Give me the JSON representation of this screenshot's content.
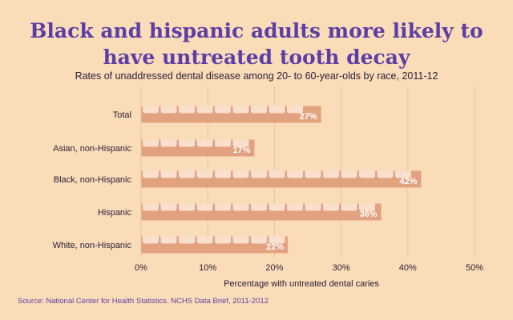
{
  "header": {
    "title_line1": "Black and hispanic adults more likely to",
    "title_line2": "have untreated tooth decay",
    "subtitle": "Rates of unaddressed dental disease among 20- to 60-year-olds by race, 2011-12"
  },
  "footer": {
    "source": "Source: National Center for Health Statistics. NCHS Data Brief, 2011-2012"
  },
  "colors": {
    "background": "#fbdcb8",
    "bar": "#e3a27f",
    "tooth": "#fdeadb",
    "bar_label": "#ffffff",
    "gridline": "#e6c39f",
    "axis_text": "#2a2038",
    "title": "#5b3fa6"
  },
  "chart_data": {
    "type": "bar",
    "orientation": "horizontal",
    "title": "Black and hispanic adults more likely to have untreated tooth decay",
    "subtitle": "Rates of unaddressed dental disease among 20- to 60-year-olds by race, 2011-12",
    "categories": [
      "Total",
      "Asian, non-Hispanic",
      "Black, non-Hispanic",
      "Hispanic",
      "White, non-Hispanic"
    ],
    "values": [
      27,
      17,
      42,
      36,
      22
    ],
    "value_labels": [
      "27%",
      "17%",
      "42%",
      "36%",
      "22%"
    ],
    "xlabel": "Percentage with untreated dental caries",
    "ylabel": "",
    "xlim": [
      0,
      50
    ],
    "xticks": [
      0,
      10,
      20,
      30,
      40,
      50
    ],
    "xtick_labels": [
      "0%",
      "10%",
      "20%",
      "30%",
      "40%",
      "50%"
    ],
    "grid": true
  }
}
